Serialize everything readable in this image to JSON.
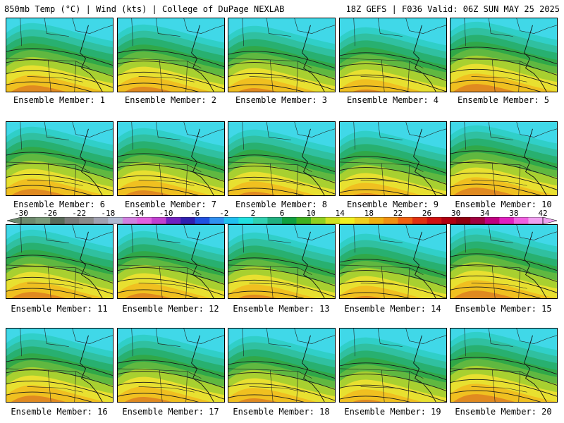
{
  "header": {
    "left": "850mb Temp (°C) | Wind (kts) | College of DuPage NEXLAB",
    "right": "18Z GEFS | F036 Valid: 06Z SUN MAY 25 2025"
  },
  "label_prefix": "Ensemble Member:",
  "members": [
    {
      "id": "1",
      "label": "Ensemble Member: 1"
    },
    {
      "id": "2",
      "label": "Ensemble Member: 2"
    },
    {
      "id": "3",
      "label": "Ensemble Member: 3"
    },
    {
      "id": "4",
      "label": "Ensemble Member: 4"
    },
    {
      "id": "5",
      "label": "Ensemble Member: 5"
    },
    {
      "id": "6",
      "label": "Ensemble Member: 6"
    },
    {
      "id": "7",
      "label": "Ensemble Member: 7"
    },
    {
      "id": "8",
      "label": "Ensemble Member: 8"
    },
    {
      "id": "9",
      "label": "Ensemble Member: 9"
    },
    {
      "id": "10",
      "label": "Ensemble Member: 10"
    },
    {
      "id": "11",
      "label": "Ensemble Member: 11"
    },
    {
      "id": "12",
      "label": "Ensemble Member: 12"
    },
    {
      "id": "13",
      "label": "Ensemble Member: 13"
    },
    {
      "id": "14",
      "label": "Ensemble Member: 14"
    },
    {
      "id": "15",
      "label": "Ensemble Member: 15"
    },
    {
      "id": "16",
      "label": "Ensemble Member: 16"
    },
    {
      "id": "17",
      "label": "Ensemble Member: 17"
    },
    {
      "id": "18",
      "label": "Ensemble Member: 18"
    },
    {
      "id": "19",
      "label": "Ensemble Member: 19"
    },
    {
      "id": "20",
      "label": "Ensemble Member: 20"
    }
  ],
  "colorbar": {
    "ticks": [
      "-30",
      "-26",
      "-22",
      "-18",
      "-14",
      "-10",
      "-6",
      "-2",
      "2",
      "6",
      "10",
      "14",
      "18",
      "22",
      "26",
      "30",
      "34",
      "38",
      "42"
    ],
    "colors": [
      "#6e8a6e",
      "#7a9a7a",
      "#5a6a5a",
      "#7a7a7a",
      "#8a8a8a",
      "#a0a0b0",
      "#b0b8d0",
      "#d080e0",
      "#e060e0",
      "#c040d0",
      "#7020c0",
      "#3020b0",
      "#2050e0",
      "#3090f0",
      "#20c0f0",
      "#20e0e0",
      "#30d0b0",
      "#20b080",
      "#10a040",
      "#40b020",
      "#90d020",
      "#d0e020",
      "#f0f020",
      "#f0d020",
      "#f0b010",
      "#f09010",
      "#f06010",
      "#e03010",
      "#d01010",
      "#b00010",
      "#900010",
      "#a00040",
      "#c00080",
      "#e020c0",
      "#f060e0",
      "#f0a0f0"
    ]
  }
}
